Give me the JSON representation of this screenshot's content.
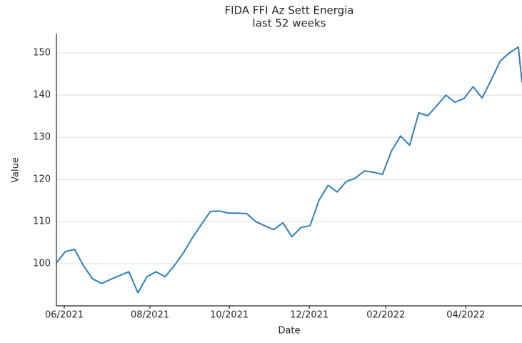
{
  "chart_data": {
    "type": "line",
    "title": "FIDA FFI Az Sett Energia",
    "subtitle": "last 52 weeks",
    "x_label": "Date",
    "y_label": "Value",
    "x": [
      0,
      1,
      2,
      3,
      4,
      5,
      6,
      7,
      8,
      9,
      10,
      11,
      12,
      13,
      14,
      15,
      16,
      17,
      18,
      19,
      20,
      21,
      22,
      23,
      24,
      25,
      26,
      27,
      28,
      29,
      30,
      31,
      32,
      33,
      34,
      35,
      36,
      37,
      38,
      39,
      40,
      41,
      42,
      43,
      44,
      45,
      46,
      47,
      48,
      49,
      50,
      51,
      51.4
    ],
    "series": [
      {
        "name": "Value",
        "color": "#2f7fb9",
        "values": [
          100.2,
          102.9,
          103.4,
          99.5,
          96.4,
          95.3,
          96.3,
          97.2,
          98.1,
          93.1,
          96.9,
          98.1,
          96.9,
          99.5,
          102.5,
          106.1,
          109.3,
          112.4,
          112.5,
          112.0,
          112.0,
          111.9,
          110.0,
          109.0,
          108.1,
          109.7,
          106.4,
          108.6,
          109.0,
          115.1,
          118.6,
          117.0,
          119.5,
          120.3,
          122.0,
          121.7,
          121.2,
          126.8,
          130.3,
          128.1,
          135.8,
          135.1,
          137.5,
          140.0,
          138.3,
          139.2,
          142.0,
          139.3,
          143.6,
          148.1,
          150.0,
          151.4,
          143.0
        ]
      }
    ],
    "xlim": [
      0,
      51.4
    ],
    "xticks": [
      {
        "value": 0.87,
        "label": "06/2021"
      },
      {
        "value": 10.33,
        "label": "08/2021"
      },
      {
        "value": 19.09,
        "label": "10/2021"
      },
      {
        "value": 27.92,
        "label": "12/2021"
      },
      {
        "value": 36.36,
        "label": "02/2022"
      },
      {
        "value": 45.19,
        "label": "04/2022"
      }
    ],
    "ylim": [
      90,
      154.6
    ],
    "yticks": [
      100,
      110,
      120,
      130,
      140,
      150
    ],
    "grid": true
  }
}
